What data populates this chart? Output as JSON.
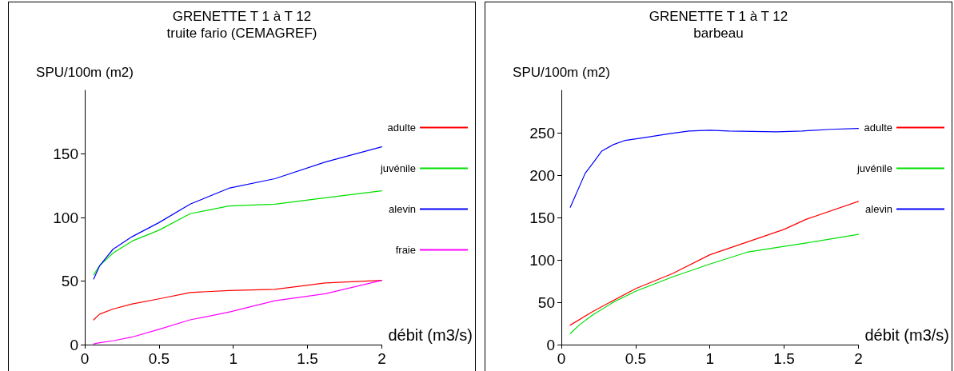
{
  "chart_data": [
    {
      "type": "line",
      "title": "GRENETTE T 1 à T 12",
      "subtitle": "truite fario (CEMAGREF)",
      "xlabel": "débit (m3/s)",
      "ylabel": "SPU/100m (m2)",
      "xlim": [
        0,
        2
      ],
      "xticks": [
        0,
        0.5,
        1,
        1.5,
        2
      ],
      "ylim": [
        0,
        200
      ],
      "yticks": [
        0,
        50,
        100,
        150
      ],
      "grid": false,
      "legend": "right",
      "marker": "none",
      "line_style": "solid",
      "x": [
        0.06,
        0.1,
        0.19,
        0.32,
        0.5,
        0.71,
        0.97,
        1.28,
        1.62,
        2
      ],
      "series": [
        {
          "name": "adulte",
          "color": "#ff0000",
          "values": [
            19.5,
            24,
            28,
            32,
            36,
            41,
            42.5,
            43.5,
            48.5,
            50.5
          ]
        },
        {
          "name": "juvénile",
          "color": "#00e000",
          "values": [
            55,
            62,
            72,
            81.5,
            90,
            103,
            109,
            110.5,
            115.5,
            121
          ]
        },
        {
          "name": "alevin",
          "color": "#0000ff",
          "values": [
            51.6,
            62,
            75,
            85,
            96,
            110.5,
            123,
            130.5,
            143.6,
            155.6
          ]
        },
        {
          "name": "fraie",
          "color": "#ff00ff",
          "values": [
            0.5,
            1.5,
            3,
            6,
            12,
            19.5,
            25.5,
            34.5,
            40,
            50.5
          ]
        }
      ]
    },
    {
      "type": "line",
      "title": "GRENETTE T 1 à T 12",
      "subtitle": "barbeau",
      "xlabel": "débit (m3/s)",
      "ylabel": "SPU/100m (m2)",
      "xlim": [
        0,
        2
      ],
      "xticks": [
        0,
        0.5,
        1,
        1.5,
        2
      ],
      "ylim": [
        0,
        300
      ],
      "yticks": [
        0,
        50,
        100,
        150,
        200,
        250
      ],
      "grid": false,
      "legend": "right",
      "marker": "none",
      "line_style": "solid",
      "series": [
        {
          "name": "adulte",
          "color": "#ff0000",
          "x": [
            0.06,
            0.21,
            0.5,
            0.75,
            1,
            1.5,
            1.65,
            2
          ],
          "values": [
            23,
            39,
            66,
            84,
            106,
            136,
            148,
            169
          ]
        },
        {
          "name": "juvénile",
          "color": "#00e000",
          "x": [
            0.06,
            0.12,
            0.21,
            0.35,
            0.5,
            0.75,
            1,
            1.25,
            1.5,
            1.65,
            2
          ],
          "values": [
            13,
            23,
            35,
            50,
            63,
            80,
            95,
            109,
            116,
            120,
            130
          ]
        },
        {
          "name": "alevin",
          "color": "#0000ff",
          "x": [
            0.06,
            0.16,
            0.22,
            0.27,
            0.35,
            0.43,
            0.55,
            0.73,
            0.86,
            1,
            1.13,
            1.45,
            1.62,
            1.81,
            2
          ],
          "values": [
            162,
            202,
            216,
            228,
            236,
            241,
            244,
            249,
            252,
            253,
            252,
            251,
            252,
            254,
            255
          ]
        }
      ]
    }
  ]
}
